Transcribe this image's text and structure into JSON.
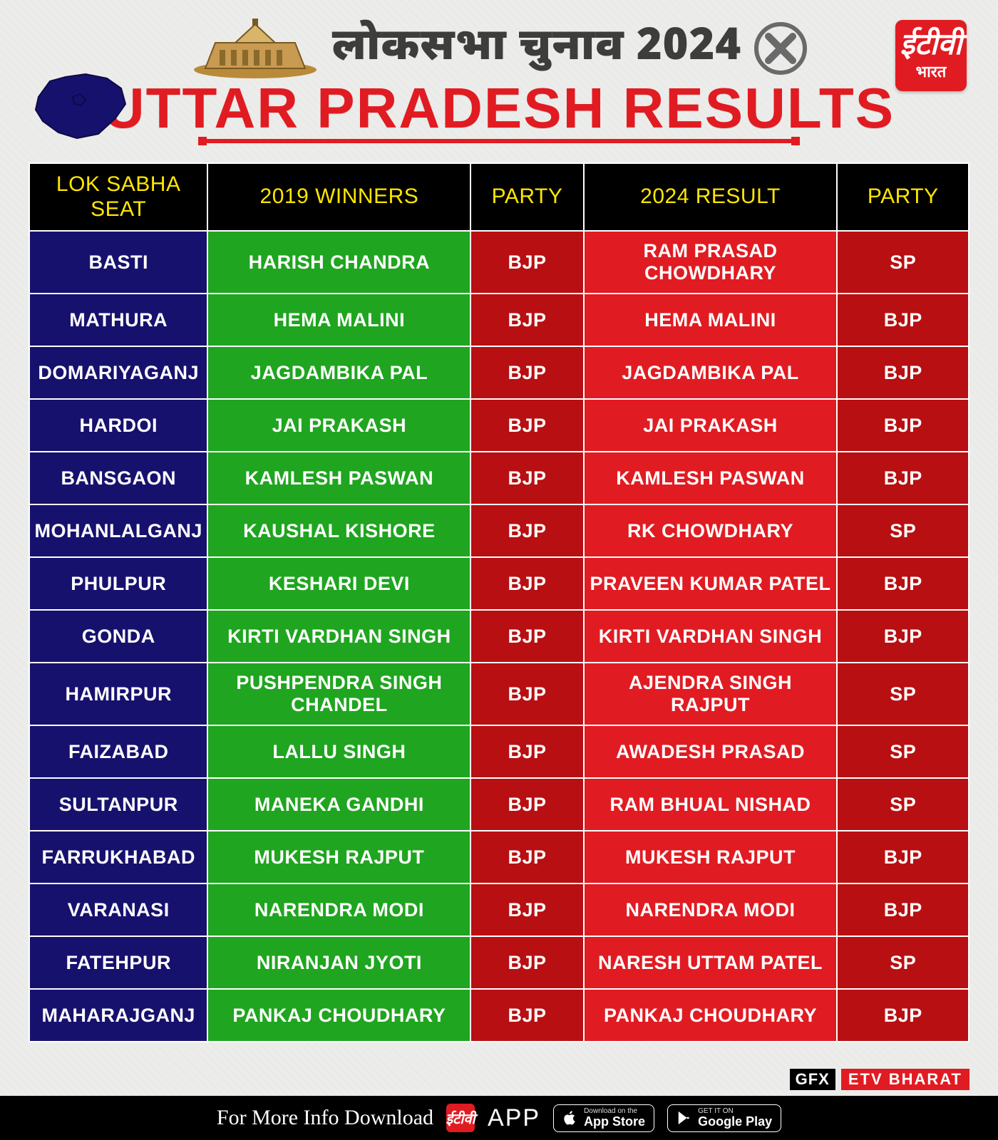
{
  "header": {
    "hindi_title": "लोकसभा चुनाव 2024",
    "main_title": "UTTAR PRADESH RESULTS",
    "logo_top": "ईटीवी",
    "logo_bottom": "भारत"
  },
  "table": {
    "type": "table",
    "header_bg": "#000000",
    "header_text_color": "#ffe600",
    "header_fontsize_pt": 22,
    "cell_fontsize_pt": 20,
    "border_color": "#ffffff",
    "columns": [
      {
        "key": "seat",
        "label": "LOK SABHA SEAT",
        "bg": "#17116e",
        "width_pct": 19
      },
      {
        "key": "w2019",
        "label": "2019 WINNERS",
        "bg": "#1fa51f",
        "width_pct": 28
      },
      {
        "key": "p2019",
        "label": "PARTY",
        "bg": "#b80f12",
        "width_pct": 12
      },
      {
        "key": "r2024",
        "label": "2024 RESULT",
        "bg": "#e11b22",
        "width_pct": 27
      },
      {
        "key": "p2024",
        "label": "PARTY",
        "bg": "#b80f12",
        "width_pct": 14
      }
    ],
    "rows": [
      {
        "seat": "BASTI",
        "w2019": "HARISH CHANDRA",
        "p2019": "BJP",
        "r2024": "RAM PRASAD CHOWDHARY",
        "p2024": "SP"
      },
      {
        "seat": "MATHURA",
        "w2019": "HEMA MALINI",
        "p2019": "BJP",
        "r2024": "HEMA MALINI",
        "p2024": "BJP"
      },
      {
        "seat": "DOMARIYAGANJ",
        "w2019": "JAGDAMBIKA PAL",
        "p2019": "BJP",
        "r2024": "JAGDAMBIKA PAL",
        "p2024": "BJP"
      },
      {
        "seat": "HARDOI",
        "w2019": "JAI PRAKASH",
        "p2019": "BJP",
        "r2024": "JAI PRAKASH",
        "p2024": "BJP"
      },
      {
        "seat": "BANSGAON",
        "w2019": "KAMLESH PASWAN",
        "p2019": "BJP",
        "r2024": "KAMLESH PASWAN",
        "p2024": "BJP"
      },
      {
        "seat": "MOHANLALGANJ",
        "w2019": "KAUSHAL KISHORE",
        "p2019": "BJP",
        "r2024": "RK CHOWDHARY",
        "p2024": "SP"
      },
      {
        "seat": "PHULPUR",
        "w2019": "KESHARI DEVI",
        "p2019": "BJP",
        "r2024": "PRAVEEN KUMAR PATEL",
        "p2024": "BJP"
      },
      {
        "seat": "GONDA",
        "w2019": "KIRTI VARDHAN SINGH",
        "p2019": "BJP",
        "r2024": "KIRTI VARDHAN SINGH",
        "p2024": "BJP"
      },
      {
        "seat": "HAMIRPUR",
        "w2019": "PUSHPENDRA SINGH CHANDEL",
        "p2019": "BJP",
        "r2024": "AJENDRA SINGH RAJPUT",
        "p2024": "SP"
      },
      {
        "seat": "FAIZABAD",
        "w2019": "LALLU SINGH",
        "p2019": "BJP",
        "r2024": "AWADESH PRASAD",
        "p2024": "SP"
      },
      {
        "seat": "SULTANPUR",
        "w2019": "MANEKA GANDHI",
        "p2019": "BJP",
        "r2024": "RAM BHUAL NISHAD",
        "p2024": "SP"
      },
      {
        "seat": "FARRUKHABAD",
        "w2019": "MUKESH RAJPUT",
        "p2019": "BJP",
        "r2024": "MUKESH RAJPUT",
        "p2024": "BJP"
      },
      {
        "seat": "VARANASI",
        "w2019": "NARENDRA MODI",
        "p2019": "BJP",
        "r2024": "NARENDRA MODI",
        "p2024": "BJP"
      },
      {
        "seat": "FATEHPUR",
        "w2019": "NIRANJAN JYOTI",
        "p2019": "BJP",
        "r2024": "NARESH UTTAM PATEL",
        "p2024": "SP"
      },
      {
        "seat": "MAHARAJGANJ",
        "w2019": "PANKAJ CHOUDHARY",
        "p2019": "BJP",
        "r2024": "PANKAJ CHOUDHARY",
        "p2024": "BJP"
      }
    ]
  },
  "footer": {
    "gfx": "GFX",
    "source": "ETV BHARAT",
    "download_text": "For More Info Download",
    "app_word": "APP",
    "store1_sub": "Download on the",
    "store1_main": "App Store",
    "store2_sub": "GET IT ON",
    "store2_main": "Google Play"
  },
  "colors": {
    "brand_red": "#e11b22",
    "dark_red": "#b80f12",
    "navy": "#17116e",
    "green": "#1fa51f",
    "header_yellow": "#ffe600",
    "page_bg": "#ececea"
  }
}
